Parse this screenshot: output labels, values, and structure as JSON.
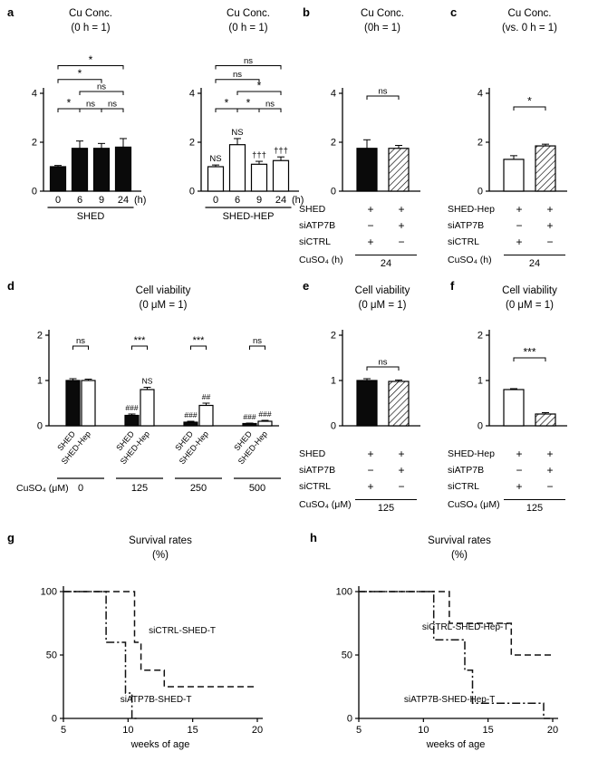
{
  "figure": {
    "panel_labels": [
      "a",
      "b",
      "c",
      "d",
      "e",
      "f",
      "g",
      "h"
    ]
  },
  "chart_data": [
    {
      "id": "a1",
      "type": "bar",
      "title": "Cu Conc.",
      "subtitle": "(0 h = 1)",
      "categories": [
        "0",
        "6",
        "9",
        "24"
      ],
      "x_unit": "(h)",
      "group_label": "SHED",
      "values": [
        1.0,
        1.75,
        1.75,
        1.8
      ],
      "errors": [
        0.05,
        0.3,
        0.2,
        0.35
      ],
      "bar_fill": "black",
      "ylim": [
        0,
        4
      ],
      "yticks": [
        0,
        2,
        4
      ],
      "brackets": [
        {
          "from": 0,
          "to": 1,
          "label": "*",
          "level": 0
        },
        {
          "from": 1,
          "to": 2,
          "label": "ns",
          "level": 0
        },
        {
          "from": 2,
          "to": 3,
          "label": "ns",
          "level": 0
        },
        {
          "from": 1,
          "to": 3,
          "label": "ns",
          "level": 1
        },
        {
          "from": 0,
          "to": 2,
          "label": "*",
          "level": 1.7
        },
        {
          "from": 0,
          "to": 3,
          "label": "*",
          "level": 2.5
        }
      ]
    },
    {
      "id": "a2",
      "type": "bar",
      "title": "Cu Conc.",
      "subtitle": "(0 h = 1)",
      "categories": [
        "0",
        "6",
        "9",
        "24"
      ],
      "x_unit": "(h)",
      "group_label": "SHED-HEP",
      "values": [
        1.0,
        1.9,
        1.1,
        1.25
      ],
      "errors": [
        0.07,
        0.25,
        0.12,
        0.15
      ],
      "bar_fill": "white",
      "ylim": [
        0,
        4
      ],
      "yticks": [
        0,
        2,
        4
      ],
      "annotations": [
        {
          "bar": 0,
          "text": "NS"
        },
        {
          "bar": 1,
          "text": "NS"
        },
        {
          "bar": 2,
          "text": "†††"
        },
        {
          "bar": 3,
          "text": "†††"
        }
      ],
      "brackets": [
        {
          "from": 0,
          "to": 1,
          "label": "*",
          "level": 0
        },
        {
          "from": 1,
          "to": 2,
          "label": "*",
          "level": 0
        },
        {
          "from": 2,
          "to": 3,
          "label": "ns",
          "level": 0
        },
        {
          "from": 1,
          "to": 3,
          "label": "*",
          "level": 1
        },
        {
          "from": 0,
          "to": 2,
          "label": "ns",
          "level": 1.7
        },
        {
          "from": 0,
          "to": 3,
          "label": "ns",
          "level": 2.5
        }
      ]
    },
    {
      "id": "b",
      "type": "bar",
      "title": "Cu Conc.",
      "subtitle": "(0h = 1)",
      "values": [
        1.75,
        1.75
      ],
      "errors": [
        0.35,
        0.12
      ],
      "bar_fills": [
        "black",
        "hatch"
      ],
      "ylim": [
        0,
        4
      ],
      "yticks": [
        0,
        2,
        4
      ],
      "brackets": [
        {
          "from": 0,
          "to": 1,
          "label": "ns",
          "level": 0
        }
      ]
    },
    {
      "id": "c",
      "type": "bar",
      "title": "Cu Conc.",
      "subtitle": "(vs. 0 h = 1)",
      "values": [
        1.3,
        1.85
      ],
      "errors": [
        0.15,
        0.07
      ],
      "bar_fills": [
        "white",
        "hatch"
      ],
      "ylim": [
        0,
        4
      ],
      "yticks": [
        0,
        2,
        4
      ],
      "brackets": [
        {
          "from": 0,
          "to": 1,
          "label": "*",
          "level": 0
        }
      ]
    },
    {
      "id": "d",
      "type": "bar",
      "title": "Cell viability",
      "subtitle": "(0 μM = 1)",
      "ylim": [
        0,
        2
      ],
      "yticks": [
        0,
        1,
        2
      ],
      "categories": [
        "SHED",
        "SHED-Hep",
        "SHED",
        "SHED-Hep",
        "SHED",
        "SHED-Hep",
        "SHED",
        "SHED-Hep"
      ],
      "values": [
        1.0,
        1.0,
        0.23,
        0.8,
        0.08,
        0.45,
        0.05,
        0.1
      ],
      "errors": [
        0.04,
        0.03,
        0.03,
        0.05,
        0.02,
        0.05,
        0.01,
        0.02
      ],
      "bar_fills": [
        "black",
        "white",
        "black",
        "white",
        "black",
        "white",
        "black",
        "white"
      ],
      "annotations": [
        {
          "bar": 2,
          "text": "###"
        },
        {
          "bar": 3,
          "text": "NS"
        },
        {
          "bar": 4,
          "text": "###"
        },
        {
          "bar": 5,
          "text": "##"
        },
        {
          "bar": 6,
          "text": "###"
        },
        {
          "bar": 7,
          "text": "###"
        }
      ],
      "pair_brackets": [
        "ns",
        "***",
        "***",
        "ns"
      ],
      "group_values": [
        "0",
        "125",
        "250",
        "500"
      ],
      "xlabel": "CuSO₄ (μM)"
    },
    {
      "id": "e",
      "type": "bar",
      "title": "Cell viability",
      "subtitle": "(0 μM = 1)",
      "values": [
        1.0,
        0.98
      ],
      "errors": [
        0.04,
        0.03
      ],
      "bar_fills": [
        "black",
        "hatch"
      ],
      "ylim": [
        0,
        2
      ],
      "yticks": [
        0,
        1,
        2
      ],
      "brackets": [
        {
          "from": 0,
          "to": 1,
          "label": "ns",
          "level": 0
        }
      ]
    },
    {
      "id": "f",
      "type": "bar",
      "title": "Cell viability",
      "subtitle": "(0 μM = 1)",
      "values": [
        0.8,
        0.26
      ],
      "errors": [
        0.02,
        0.03
      ],
      "bar_fills": [
        "white",
        "hatch"
      ],
      "ylim": [
        0,
        2
      ],
      "yticks": [
        0,
        1,
        2
      ],
      "brackets": [
        {
          "from": 0,
          "to": 1,
          "label": "***",
          "level": 0
        }
      ]
    },
    {
      "id": "g",
      "type": "survival",
      "title": "Survival rates",
      "subtitle": "(%)",
      "xlim": [
        5,
        20
      ],
      "xticks": [
        5,
        10,
        15,
        20
      ],
      "ylim": [
        0,
        100
      ],
      "yticks": [
        0,
        50,
        100
      ],
      "xlabel": "weeks of age",
      "series": [
        {
          "name": "siCTRL-SHED-T",
          "line": "dashed",
          "label_x": 11.6,
          "label_y": 67,
          "points": [
            [
              5,
              100
            ],
            [
              10.5,
              100
            ],
            [
              10.5,
              60
            ],
            [
              11,
              60
            ],
            [
              11,
              38
            ],
            [
              12.8,
              38
            ],
            [
              12.8,
              25
            ],
            [
              20,
              25
            ]
          ]
        },
        {
          "name": "siATP7B-SHED-T",
          "line": "dashdot",
          "label_x": 9.4,
          "label_y": 13,
          "points": [
            [
              5,
              100
            ],
            [
              8.3,
              100
            ],
            [
              8.3,
              60
            ],
            [
              9.8,
              60
            ],
            [
              9.8,
              20
            ],
            [
              10.3,
              20
            ],
            [
              10.3,
              0
            ],
            [
              10.8,
              0
            ]
          ]
        }
      ]
    },
    {
      "id": "h",
      "type": "survival",
      "title": "Survival rates",
      "subtitle": "(%)",
      "xlim": [
        5,
        20
      ],
      "xticks": [
        5,
        10,
        15,
        20
      ],
      "ylim": [
        0,
        100
      ],
      "yticks": [
        0,
        50,
        100
      ],
      "xlabel": "weeks of age",
      "series": [
        {
          "name": "siCTRL-SHED-Hep-T",
          "line": "dashed",
          "label_x": 9.9,
          "label_y": 70,
          "points": [
            [
              5,
              100
            ],
            [
              12,
              100
            ],
            [
              12,
              75
            ],
            [
              16.8,
              75
            ],
            [
              16.8,
              50
            ],
            [
              20,
              50
            ]
          ]
        },
        {
          "name": "siATP7B-SHED-Hep-T",
          "line": "dashdot",
          "label_x": 8.5,
          "label_y": 13,
          "points": [
            [
              5,
              100
            ],
            [
              10.8,
              100
            ],
            [
              10.8,
              62
            ],
            [
              13.2,
              62
            ],
            [
              13.2,
              38
            ],
            [
              13.8,
              38
            ],
            [
              13.8,
              12
            ],
            [
              19.3,
              12
            ],
            [
              19.3,
              0
            ],
            [
              19.8,
              0
            ]
          ]
        }
      ]
    }
  ],
  "tables": {
    "b": {
      "rows": [
        [
          "SHED",
          "+",
          "+"
        ],
        [
          "siATP7B",
          "−",
          "+"
        ],
        [
          "siCTRL",
          "+",
          "−"
        ]
      ],
      "footer_label": "CuSO₄ (h)",
      "footer_value": "24"
    },
    "c": {
      "rows": [
        [
          "SHED-Hep",
          "+",
          "+"
        ],
        [
          "siATP7B",
          "−",
          "+"
        ],
        [
          "siCTRL",
          "+",
          "−"
        ]
      ],
      "footer_label": "CuSO₄ (h)",
      "footer_value": "24"
    },
    "e": {
      "rows": [
        [
          "SHED",
          "+",
          "+"
        ],
        [
          "siATP7B",
          "−",
          "+"
        ],
        [
          "siCTRL",
          "+",
          "−"
        ]
      ],
      "footer_label": "CuSO₄ (μM)",
      "footer_value": "125"
    },
    "f": {
      "rows": [
        [
          "SHED-Hep",
          "+",
          "+"
        ],
        [
          "siATP7B",
          "−",
          "+"
        ],
        [
          "siCTRL",
          "+",
          "−"
        ]
      ],
      "footer_label": "CuSO₄ (μM)",
      "footer_value": "125"
    }
  }
}
